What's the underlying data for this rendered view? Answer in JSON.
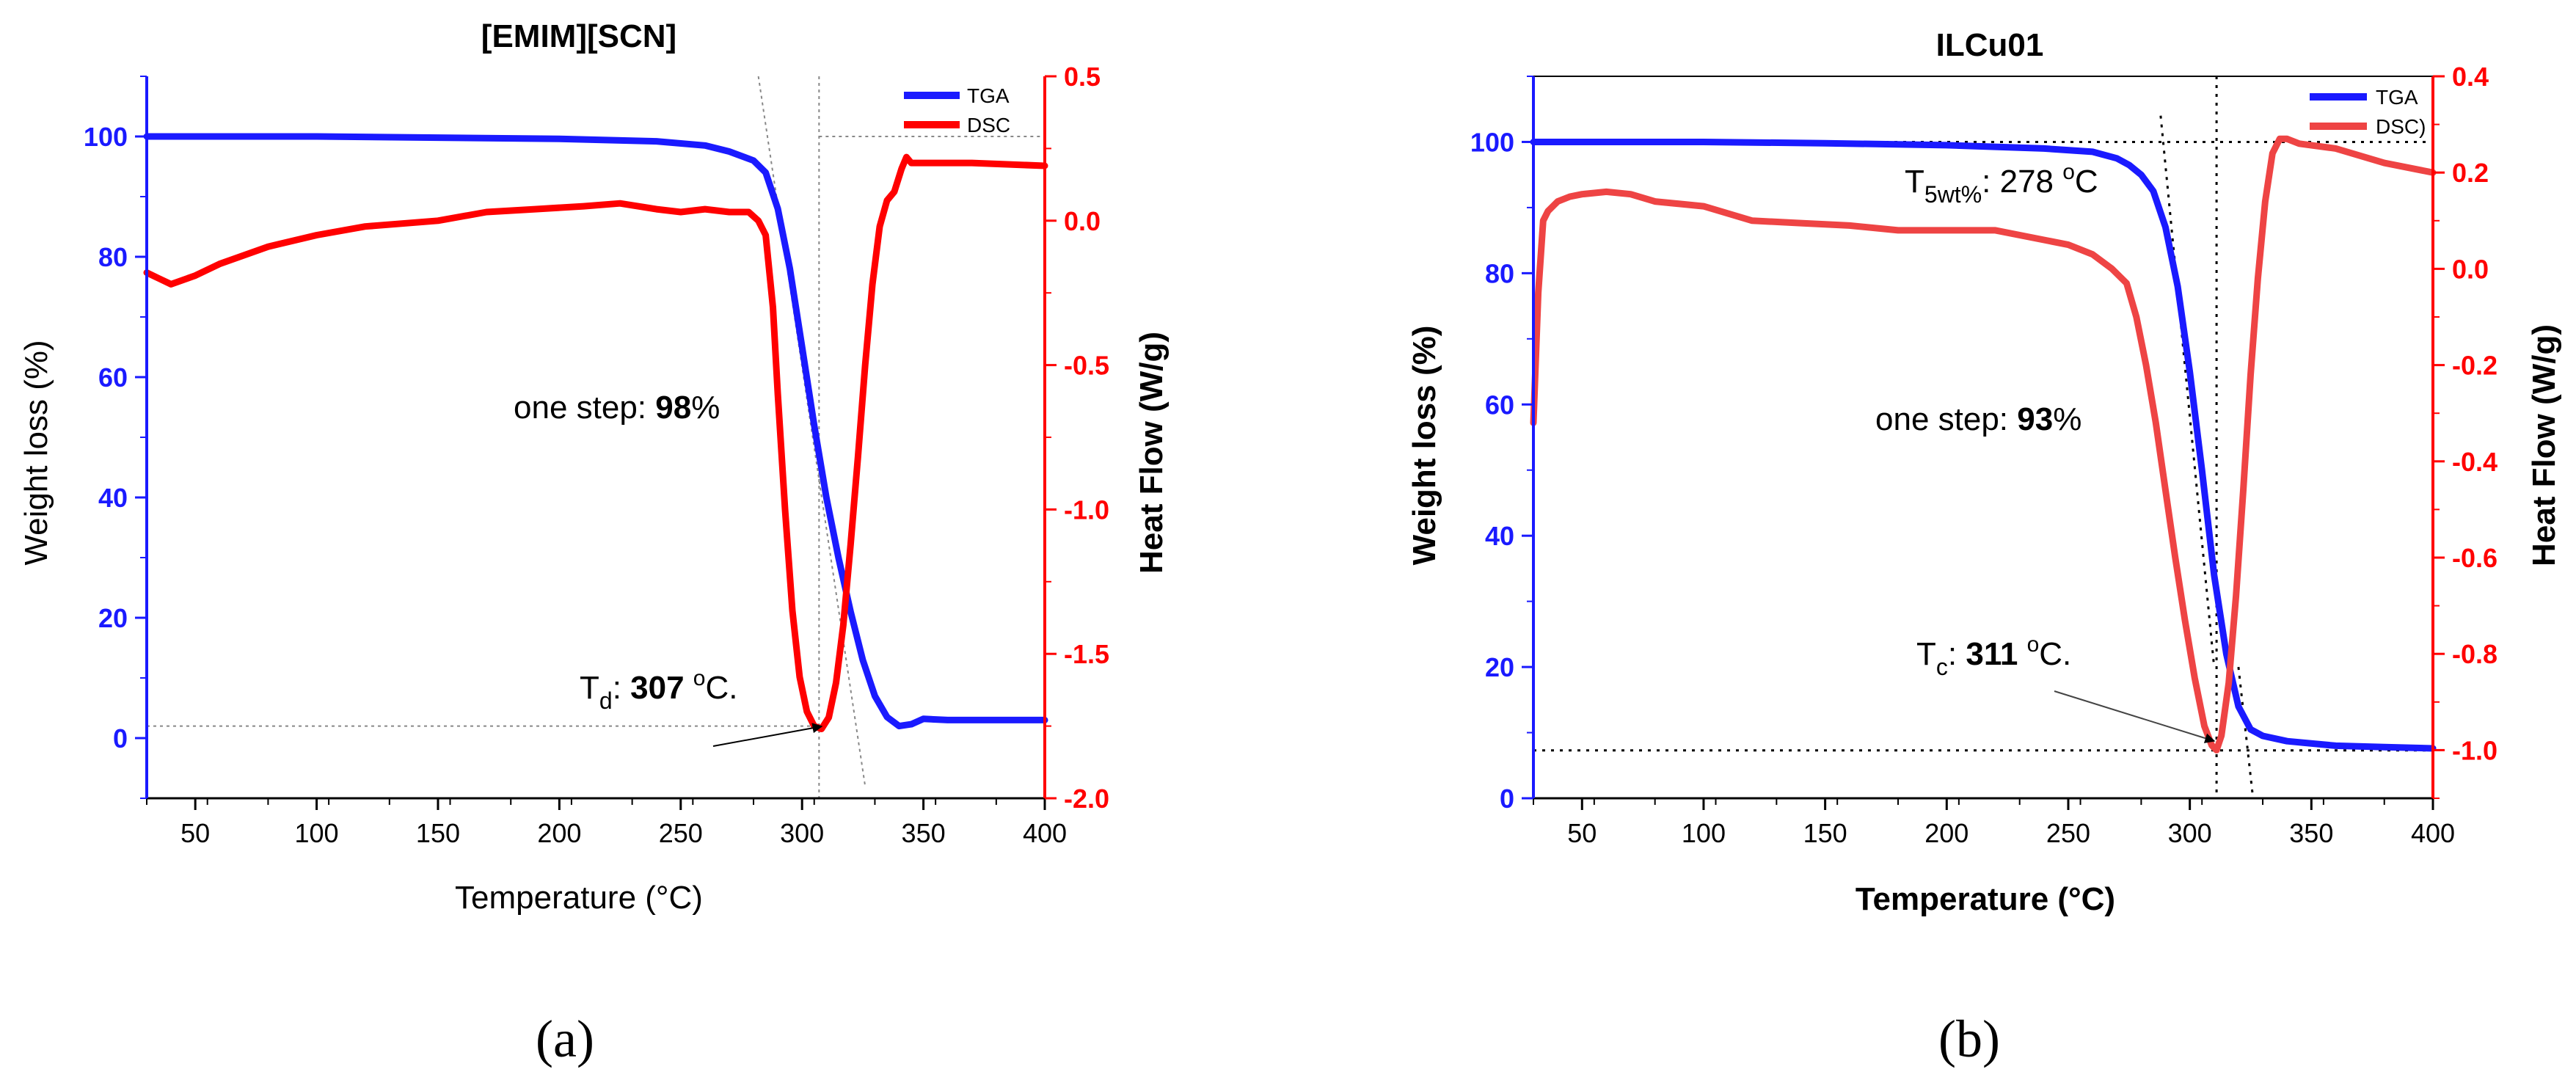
{
  "chart_data": [
    {
      "type": "line",
      "title": "[EMIM][SCN]",
      "panel_label": "(a)",
      "xlabel": "Temperature (°C)",
      "ylabel_left": "Weight loss (%)",
      "ylabel_right": "Heat Flow (W/g)",
      "xlim": [
        30,
        400
      ],
      "ylim_left": [
        -10,
        110
      ],
      "ylim_right": [
        -2.0,
        0.5
      ],
      "x_ticks": [
        50,
        100,
        150,
        200,
        250,
        300,
        350,
        400
      ],
      "y_left_ticks": [
        0,
        20,
        40,
        60,
        80,
        100
      ],
      "y_right_ticks": [
        -2.0,
        -1.5,
        -1.0,
        -0.5,
        0.0,
        0.5
      ],
      "y_right_tick_labels": [
        "-2.0",
        "-1.5",
        "-1.0",
        "-0.5",
        "0.0",
        "0.5"
      ],
      "legend": [
        "TGA",
        "DSC"
      ],
      "legend_position": "top-right",
      "colors": {
        "TGA": "#1a1aff",
        "DSC": "#ff0000",
        "left_axis": "#1a1aff",
        "right_axis": "#ff0000"
      },
      "series": [
        {
          "name": "TGA",
          "axis": "left",
          "x": [
            30,
            100,
            150,
            200,
            240,
            260,
            270,
            280,
            285,
            290,
            295,
            300,
            305,
            310,
            315,
            320,
            325,
            330,
            335,
            340,
            345,
            350,
            360,
            380,
            400
          ],
          "y": [
            100,
            100,
            99.8,
            99.6,
            99.2,
            98.5,
            97.5,
            96,
            94,
            88,
            78,
            65,
            52,
            40,
            30,
            21,
            13,
            7,
            3.5,
            2,
            2.3,
            3.2,
            3,
            3,
            3
          ]
        },
        {
          "name": "DSC",
          "axis": "right",
          "x": [
            30,
            35,
            40,
            50,
            60,
            70,
            80,
            100,
            120,
            150,
            170,
            190,
            210,
            225,
            240,
            250,
            260,
            270,
            278,
            282,
            285,
            288,
            290,
            293,
            296,
            299,
            302,
            305,
            308,
            311,
            314,
            317,
            320,
            323,
            326,
            329,
            332,
            335,
            338,
            341,
            343,
            345,
            350,
            370,
            400
          ],
          "y": [
            -0.18,
            -0.2,
            -0.22,
            -0.19,
            -0.15,
            -0.12,
            -0.09,
            -0.05,
            -0.02,
            0.0,
            0.03,
            0.04,
            0.05,
            0.06,
            0.04,
            0.03,
            0.04,
            0.03,
            0.03,
            0.0,
            -0.05,
            -0.3,
            -0.6,
            -1.0,
            -1.35,
            -1.58,
            -1.7,
            -1.75,
            -1.76,
            -1.72,
            -1.6,
            -1.4,
            -1.12,
            -0.82,
            -0.5,
            -0.22,
            -0.02,
            0.07,
            0.1,
            0.18,
            0.22,
            0.2,
            0.2,
            0.2,
            0.19
          ]
        }
      ],
      "annotations": {
        "step_prefix": "one step: ",
        "step_value": "98",
        "step_unit": "%",
        "td_label": "T",
        "td_sub": "d",
        "td_sep": ": ",
        "td_value": "307",
        "td_unit_sup": "o",
        "td_unit": "C."
      }
    },
    {
      "type": "line",
      "title": "ILCu01",
      "panel_label": "(b)",
      "xlabel": "Temperature (°C)",
      "ylabel_left": "Weight loss (%)",
      "ylabel_right": "Heat Flow (W/g)",
      "xlim": [
        30,
        400
      ],
      "ylim_left": [
        0,
        110
      ],
      "ylim_right": [
        -1.1,
        0.4
      ],
      "x_ticks": [
        50,
        100,
        150,
        200,
        250,
        300,
        350,
        400
      ],
      "y_left_ticks": [
        0,
        20,
        40,
        60,
        80,
        100
      ],
      "y_right_ticks": [
        -1.0,
        -0.8,
        -0.6,
        -0.4,
        -0.2,
        0.0,
        0.2,
        0.4
      ],
      "y_right_tick_labels": [
        "-1.0",
        "-0.8",
        "-0.6",
        "-0.4",
        "-0.2",
        "0.0",
        "0.2",
        "0.4"
      ],
      "legend": [
        "TGA",
        "DSC)"
      ],
      "legend_position": "top-right",
      "colors": {
        "TGA": "#1a1aff",
        "DSC": "#ee4444",
        "left_axis": "#1a1aff",
        "right_axis": "#ff0000"
      },
      "series": [
        {
          "name": "TGA",
          "axis": "left",
          "x": [
            30,
            100,
            150,
            200,
            240,
            260,
            270,
            275,
            280,
            285,
            290,
            295,
            300,
            305,
            310,
            315,
            320,
            325,
            330,
            340,
            360,
            380,
            400
          ],
          "y": [
            100,
            100,
            99.8,
            99.5,
            99,
            98.5,
            97.5,
            96.5,
            95,
            92.5,
            87,
            78,
            65,
            50,
            34,
            22,
            14,
            10.5,
            9.5,
            8.7,
            8,
            7.8,
            7.6
          ]
        },
        {
          "name": "DSC)",
          "axis": "right",
          "x": [
            30,
            32,
            34,
            36,
            40,
            45,
            50,
            60,
            70,
            80,
            100,
            120,
            140,
            160,
            180,
            200,
            220,
            240,
            250,
            260,
            268,
            274,
            278,
            282,
            286,
            290,
            294,
            298,
            302,
            306,
            309,
            311,
            313,
            316,
            319,
            322,
            325,
            328,
            331,
            334,
            337,
            340,
            345,
            360,
            380,
            400
          ],
          "y": [
            -0.32,
            -0.05,
            0.1,
            0.12,
            0.14,
            0.15,
            0.155,
            0.16,
            0.155,
            0.14,
            0.13,
            0.1,
            0.095,
            0.09,
            0.08,
            0.08,
            0.08,
            0.06,
            0.05,
            0.03,
            0.0,
            -0.03,
            -0.1,
            -0.2,
            -0.32,
            -0.46,
            -0.6,
            -0.73,
            -0.85,
            -0.95,
            -0.99,
            -1.0,
            -0.97,
            -0.86,
            -0.68,
            -0.46,
            -0.22,
            -0.02,
            0.14,
            0.24,
            0.27,
            0.27,
            0.26,
            0.25,
            0.22,
            0.2
          ]
        }
      ],
      "annotations": {
        "t5_label": "T",
        "t5_sub": "5wt%",
        "t5_sep": ": ",
        "t5_value": "278 ",
        "t5_unit_sup": "o",
        "t5_unit": "C",
        "step_prefix": "one step: ",
        "step_value": "93",
        "step_unit": "%",
        "tc_label": "T",
        "tc_sub": "c",
        "tc_sep": ": ",
        "tc_value": "311",
        "tc_unit_sup": "o",
        "tc_unit": "C."
      }
    }
  ]
}
